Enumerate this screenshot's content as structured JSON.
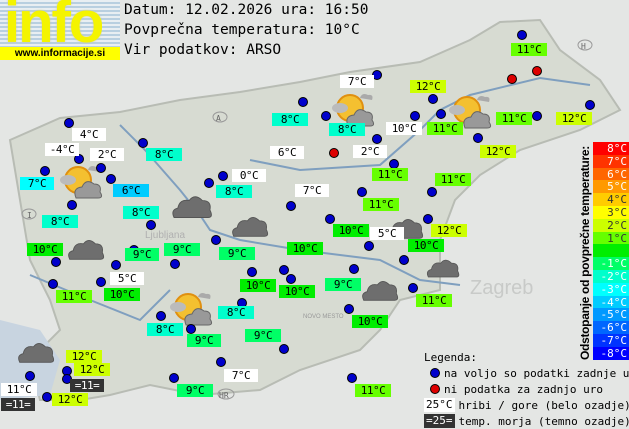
{
  "logo": {
    "text": "info",
    "url": "www.informacije.si"
  },
  "header": {
    "date_line": "Datum: 12.02.2026 ura: 16:50",
    "avg_line": "Povprečna temperatura: 10°C",
    "source_line": "Vir podatkov: ARSO"
  },
  "colors": {
    "m8": "#ff0000",
    "m7": "#ff3300",
    "m6": "#ff6600",
    "m5": "#ff9900",
    "m4": "#ffcc00",
    "m3": "#ffff00",
    "m2": "#ccff00",
    "m1": "#66ff00",
    "z0": "#00ee00",
    "n1": "#00ff66",
    "n2": "#00ffcc",
    "n3": "#00ffff",
    "n4": "#00ccff",
    "n5": "#0099ff",
    "n6": "#0066ff",
    "n7": "#0033ff",
    "n8": "#0000ff",
    "mountain": "#ffffff",
    "sea": "#333333",
    "station": "#0000cc",
    "nodata": "#dd0000"
  },
  "stations": [
    {
      "t": "4°C",
      "k": "mountain"
    },
    {
      "t": "-4°C",
      "k": "mountain"
    },
    {
      "t": "2°C",
      "k": "mountain"
    },
    {
      "t": "7°C",
      "k": "n3"
    },
    {
      "t": "6°C",
      "k": "n4"
    },
    {
      "t": "8°C",
      "k": "n2"
    },
    {
      "t": "8°C",
      "k": "n2"
    },
    {
      "t": "8°C",
      "k": "n2"
    },
    {
      "t": "6°C",
      "k": "mountain"
    },
    {
      "t": "0°C",
      "k": "mountain"
    },
    {
      "t": "8°C",
      "k": "n2"
    },
    {
      "t": "7°C",
      "k": "mountain"
    },
    {
      "t": "8°C",
      "k": "n2"
    },
    {
      "t": "7°C",
      "k": "mountain"
    },
    {
      "t": "12°C",
      "k": "m2"
    },
    {
      "t": "8°C",
      "k": "n2"
    },
    {
      "t": "10°C",
      "k": "mountain"
    },
    {
      "t": "11°C",
      "k": "m1"
    },
    {
      "t": "2°C",
      "k": "mountain"
    },
    {
      "t": "11°C",
      "k": "m1"
    },
    {
      "t": "11°C",
      "k": "m1"
    },
    {
      "t": "11°C",
      "k": "m1"
    },
    {
      "t": "11°C",
      "k": "m1"
    },
    {
      "t": "11°C",
      "k": "m1"
    },
    {
      "t": "12°C",
      "k": "m2"
    },
    {
      "t": "12°C",
      "k": "m2"
    },
    {
      "t": "10°C",
      "k": "z0"
    },
    {
      "t": "5°C",
      "k": "mountain"
    },
    {
      "t": "12°C",
      "k": "m2"
    },
    {
      "t": "10°C",
      "k": "z0"
    },
    {
      "t": "9°C",
      "k": "n1"
    },
    {
      "t": "9°C",
      "k": "n1"
    },
    {
      "t": "9°C",
      "k": "n1"
    },
    {
      "t": "10°C",
      "k": "z0"
    },
    {
      "t": "10°C",
      "k": "z0"
    },
    {
      "t": "5°C",
      "k": "mountain"
    },
    {
      "t": "11°C",
      "k": "m1"
    },
    {
      "t": "10°C",
      "k": "z0"
    },
    {
      "t": "10°C",
      "k": "z0"
    },
    {
      "t": "10°C",
      "k": "z0"
    },
    {
      "t": "9°C",
      "k": "n1"
    },
    {
      "t": "11°C",
      "k": "m1"
    },
    {
      "t": "8°C",
      "k": "n2"
    },
    {
      "t": "9°C",
      "k": "n1"
    },
    {
      "t": "8°C",
      "k": "n2"
    },
    {
      "t": "9°C",
      "k": "n1"
    },
    {
      "t": "10°C",
      "k": "z0"
    },
    {
      "t": "12°C",
      "k": "m2"
    },
    {
      "t": "12°C",
      "k": "m2"
    },
    {
      "t": "=11=",
      "k": "sea"
    },
    {
      "t": "11°C",
      "k": "mountain"
    },
    {
      "t": "=11=",
      "k": "sea"
    },
    {
      "t": "12°C",
      "k": "m2"
    },
    {
      "t": "9°C",
      "k": "n1"
    },
    {
      "t": "7°C",
      "k": "mountain"
    },
    {
      "t": "11°C",
      "k": "m1"
    }
  ],
  "scale": {
    "title": "Odstopanje od povprečne temperature:",
    "steps": [
      {
        "t": "8°C",
        "k": "m8"
      },
      {
        "t": "7°C",
        "k": "m7"
      },
      {
        "t": "6°C",
        "k": "m6"
      },
      {
        "t": "5°C",
        "k": "m5"
      },
      {
        "t": "4°C",
        "k": "m4"
      },
      {
        "t": "3°C",
        "k": "m3"
      },
      {
        "t": "2°C",
        "k": "m2"
      },
      {
        "t": "1°C",
        "k": "m1"
      },
      {
        "t": "",
        "k": "z0"
      },
      {
        "t": "-1°C",
        "k": "n1"
      },
      {
        "t": "-2°C",
        "k": "n2"
      },
      {
        "t": "-3°C",
        "k": "n3"
      },
      {
        "t": "-4°C",
        "k": "n4"
      },
      {
        "t": "-5°C",
        "k": "n5"
      },
      {
        "t": "-6°C",
        "k": "n6"
      },
      {
        "t": "-7°C",
        "k": "n7"
      },
      {
        "t": "-8°C",
        "k": "n8"
      }
    ]
  },
  "legend": {
    "title": "Legenda:",
    "available": "na voljo so podatki zadnje ure",
    "no_data": "ni podatka za zadnjo uro",
    "mountain_sample": "25°C",
    "mountain": "hribi / gore (belo ozadje)",
    "sea_sample": "=25=",
    "sea": "temp. morja (temno ozadje)"
  },
  "map_labels": {
    "zagreb": "Zagreb",
    "ljubljana": "Ljubljana",
    "novo_mesto": "NOVO MESTO",
    "austria": "A",
    "hungary": "H",
    "italy": "I",
    "croatia": "HR"
  },
  "weather_icons": [
    "partly-cloudy",
    "partly-cloudy",
    "partly-cloudy",
    "partly-cloudy",
    "cloudy",
    "cloudy",
    "cloudy",
    "cloudy",
    "cloudy",
    "cloudy",
    "cloudy",
    "cloudy"
  ]
}
